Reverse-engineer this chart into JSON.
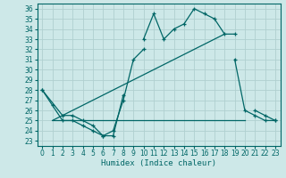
{
  "xlabel": "Humidex (Indice chaleur)",
  "background_color": "#cde8e8",
  "grid_color": "#b0d0d0",
  "line_color": "#006666",
  "xlim": [
    -0.5,
    23.5
  ],
  "ylim": [
    22.5,
    36.5
  ],
  "yticks": [
    23,
    24,
    25,
    26,
    27,
    28,
    29,
    30,
    31,
    32,
    33,
    34,
    35,
    36
  ],
  "xticks": [
    0,
    1,
    2,
    3,
    4,
    5,
    6,
    7,
    8,
    9,
    10,
    11,
    12,
    13,
    14,
    15,
    16,
    17,
    18,
    19,
    20,
    21,
    22,
    23
  ],
  "lines": [
    {
      "x": [
        0,
        1,
        2,
        3,
        4,
        5,
        6,
        7,
        8,
        10,
        11,
        12,
        13,
        14,
        15,
        16,
        17,
        18,
        19,
        21,
        22,
        23
      ],
      "y": [
        28,
        26.5,
        25,
        25,
        24.5,
        24,
        23.5,
        23.5,
        27.5,
        33,
        35.5,
        33,
        34,
        34.5,
        36,
        35.5,
        35,
        33.5,
        33.5,
        26,
        25.5,
        25
      ],
      "has_markers": true,
      "break_after": [
        8,
        19
      ]
    },
    {
      "x": [
        0,
        2,
        3,
        4,
        5,
        6,
        7,
        8,
        9,
        10,
        19,
        20,
        21,
        22,
        23
      ],
      "y": [
        28,
        25.5,
        25.5,
        25,
        24.5,
        23.5,
        24,
        27,
        31,
        32,
        31,
        26,
        25.5,
        25,
        25
      ],
      "has_markers": true,
      "break_after": [
        10
      ]
    },
    {
      "x": [
        1,
        18
      ],
      "y": [
        25,
        33.5
      ],
      "has_markers": false
    },
    {
      "x": [
        1,
        20
      ],
      "y": [
        25,
        25
      ],
      "has_markers": false
    }
  ]
}
